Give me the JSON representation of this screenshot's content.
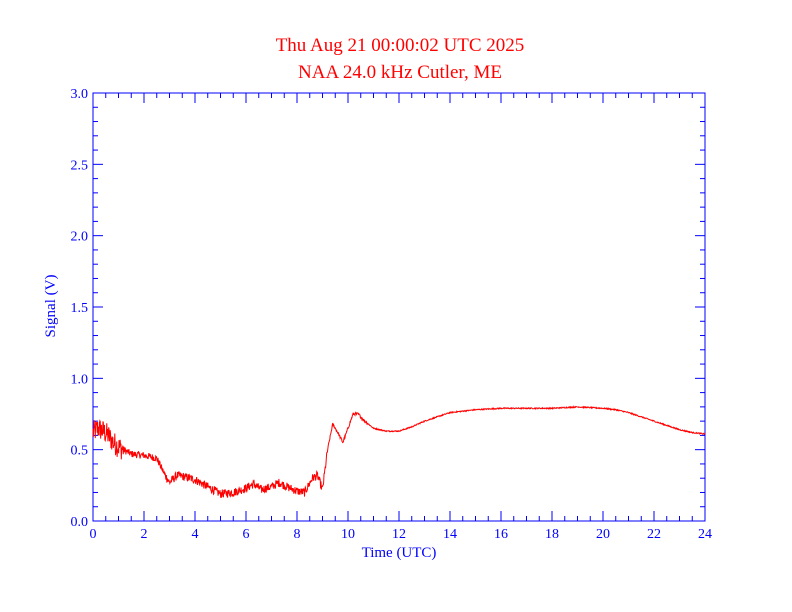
{
  "chart_data": {
    "type": "line",
    "title": "Thu Aug 21 00:00:02 UTC 2025",
    "subtitle": "NAA 24.0 kHz Cutler, ME",
    "xlabel": "Time (UTC)",
    "ylabel": "Signal (V)",
    "xlim": [
      0,
      24
    ],
    "ylim": [
      0,
      3.0
    ],
    "x_ticks": [
      "0",
      "2",
      "4",
      "6",
      "8",
      "10",
      "12",
      "14",
      "16",
      "18",
      "20",
      "22",
      "24"
    ],
    "y_ticks": [
      "0.0",
      "0.5",
      "1.0",
      "1.5",
      "2.0",
      "2.5",
      "3.0"
    ],
    "grid": false,
    "colors": {
      "axes": "#0000ff",
      "line": "#ff0000",
      "title": "#ff0000"
    },
    "series": [
      {
        "x": [
          0,
          0.2,
          0.4,
          0.6,
          0.8,
          1.0,
          1.5,
          2.0,
          2.5,
          2.8,
          3.0,
          3.3,
          3.6,
          4.0,
          4.4,
          4.8,
          5.0,
          5.5,
          6.0,
          6.3,
          6.6,
          7.0,
          7.3,
          7.6,
          8.0,
          8.3,
          8.6,
          8.8,
          9.0,
          9.2,
          9.4,
          9.6,
          9.8,
          10.0,
          10.2,
          10.4,
          10.6,
          11.0,
          11.5,
          12.0,
          12.5,
          13.0,
          14.0,
          15.0,
          16.0,
          17.0,
          18.0,
          19.0,
          20.0,
          20.5,
          21.0,
          21.5,
          22.0,
          22.5,
          23.0,
          23.5,
          24.0
        ],
        "y": [
          0.62,
          0.65,
          0.63,
          0.6,
          0.55,
          0.52,
          0.47,
          0.46,
          0.44,
          0.33,
          0.27,
          0.32,
          0.31,
          0.29,
          0.25,
          0.21,
          0.19,
          0.2,
          0.23,
          0.26,
          0.22,
          0.24,
          0.27,
          0.24,
          0.21,
          0.2,
          0.3,
          0.32,
          0.22,
          0.5,
          0.68,
          0.62,
          0.55,
          0.65,
          0.75,
          0.75,
          0.71,
          0.65,
          0.63,
          0.63,
          0.66,
          0.7,
          0.76,
          0.78,
          0.79,
          0.79,
          0.79,
          0.8,
          0.79,
          0.78,
          0.76,
          0.73,
          0.7,
          0.67,
          0.64,
          0.62,
          0.61
        ]
      }
    ]
  }
}
